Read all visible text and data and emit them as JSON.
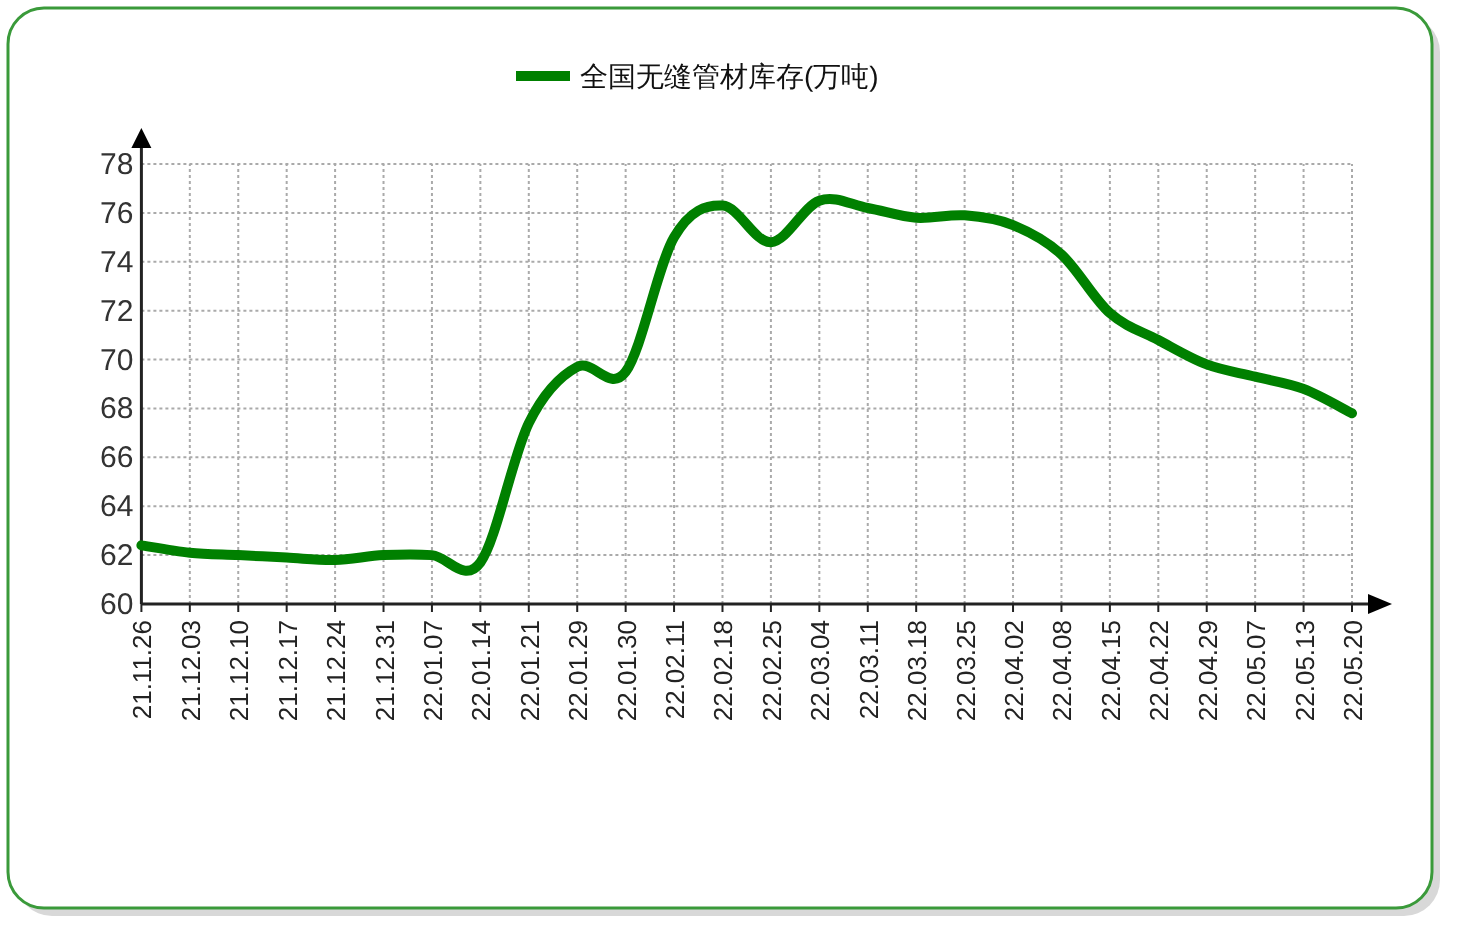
{
  "chart_data": {
    "type": "line",
    "categories": [
      "21.11.26",
      "21.12.03",
      "21.12.10",
      "21.12.17",
      "21.12.24",
      "21.12.31",
      "22.01.07",
      "22.01.14",
      "22.01.21",
      "22.01.29",
      "22.01.30",
      "22.02.11",
      "22.02.18",
      "22.02.25",
      "22.03.04",
      "22.03.11",
      "22.03.18",
      "22.03.25",
      "22.04.02",
      "22.04.08",
      "22.04.15",
      "22.04.22",
      "22.04.29",
      "22.05.07",
      "22.05.13",
      "22.05.20"
    ],
    "series": [
      {
        "name": "全国无缝管材库存(万吨)",
        "color": "#008000",
        "values": [
          62.4,
          62.1,
          62.0,
          61.9,
          61.8,
          62.0,
          62.0,
          61.7,
          67.4,
          69.7,
          69.5,
          75.0,
          76.3,
          74.8,
          76.5,
          76.2,
          75.8,
          75.9,
          75.5,
          74.3,
          71.9,
          70.8,
          69.8,
          69.3,
          68.8,
          67.8
        ]
      }
    ],
    "ylim": [
      60,
      78
    ],
    "yticks": [
      60,
      62,
      64,
      66,
      68,
      70,
      72,
      74,
      76,
      78
    ],
    "grid": true,
    "legend": "top",
    "marker": "none",
    "line_style": "solid"
  }
}
